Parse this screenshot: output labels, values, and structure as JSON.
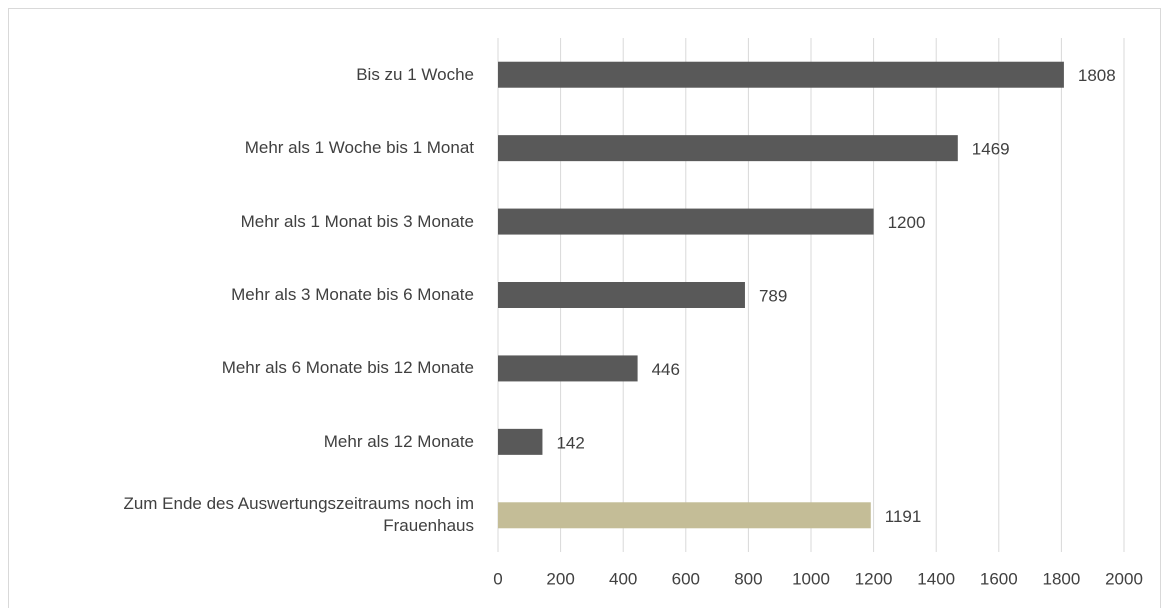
{
  "chart_data": {
    "type": "bar",
    "orientation": "horizontal",
    "categories": [
      "Bis zu 1 Woche",
      "Mehr als 1 Woche bis 1 Monat",
      "Mehr als 1 Monat bis 3 Monate",
      "Mehr als 3 Monate bis 6 Monate",
      "Mehr als 6 Monate bis 12 Monate",
      "Mehr als 12 Monate",
      "Zum Ende des Auswertungszeitraums noch im Frauenhaus"
    ],
    "values": [
      1808,
      1469,
      1200,
      789,
      446,
      142,
      1191
    ],
    "colors": [
      "#595959",
      "#595959",
      "#595959",
      "#595959",
      "#595959",
      "#595959",
      "#c4bd97"
    ],
    "xlim": [
      0,
      2000
    ],
    "xticks": [
      0,
      200,
      400,
      600,
      800,
      1000,
      1200,
      1400,
      1600,
      1800,
      2000
    ],
    "grid": true
  }
}
